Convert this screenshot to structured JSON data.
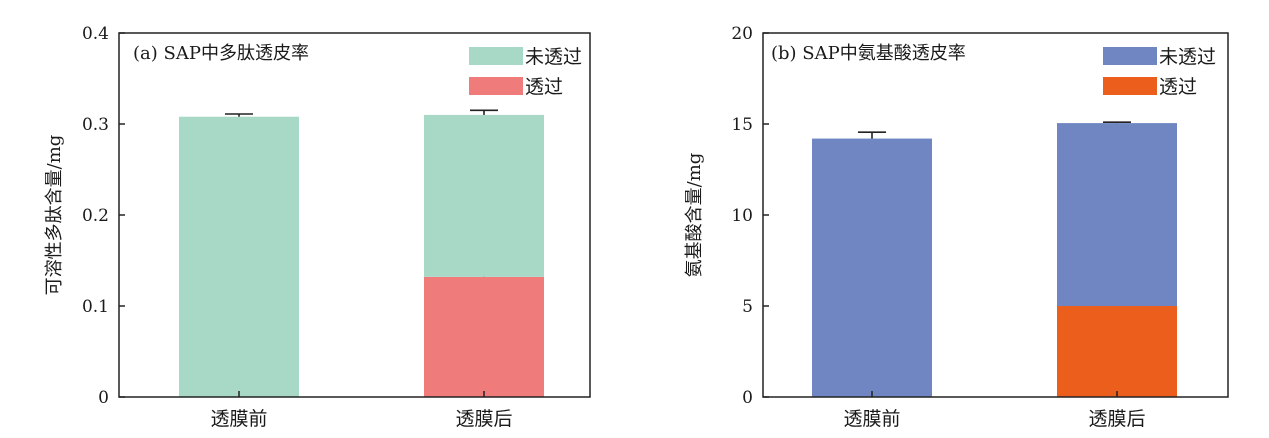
{
  "chart_data": [
    {
      "type": "bar",
      "stacked": true,
      "title": "(a) SAP中多肽透皮率",
      "xlabel": "",
      "ylabel": "可溶性多肽含量/mg",
      "categories": [
        "透膜前",
        "透膜后"
      ],
      "ylim": [
        0,
        0.4
      ],
      "yticks": [
        0,
        0.1,
        0.2,
        0.3,
        0.4
      ],
      "ytick_labels": [
        "0",
        "0.1",
        "0.2",
        "0.3",
        "0.4"
      ],
      "grid": false,
      "legend_position": "top-right",
      "legend": [
        "未透过",
        "透过"
      ],
      "series": [
        {
          "name": "透过",
          "values": [
            0,
            0.132
          ],
          "errors": [
            0,
            0.025
          ],
          "color": "#ef7b7b"
        },
        {
          "name": "未透过",
          "values": [
            0.308,
            0.178
          ],
          "errors": [
            0.003,
            0.005
          ],
          "color": "#a8d8c6"
        }
      ]
    },
    {
      "type": "bar",
      "stacked": true,
      "title": "(b) SAP中氨基酸透皮率",
      "xlabel": "",
      "ylabel": "氨基酸含量/mg",
      "categories": [
        "透膜前",
        "透膜后"
      ],
      "ylim": [
        0,
        20
      ],
      "yticks": [
        0,
        5,
        10,
        15,
        20
      ],
      "ytick_labels": [
        "0",
        "5",
        "10",
        "15",
        "20"
      ],
      "grid": false,
      "legend_position": "top-right",
      "legend": [
        "未透过",
        "透过"
      ],
      "series": [
        {
          "name": "透过",
          "values": [
            0,
            5.0
          ],
          "errors": [
            0,
            0.1
          ],
          "color": "#eb5e1c"
        },
        {
          "name": "未透过",
          "values": [
            14.2,
            10.05
          ],
          "errors": [
            0.35,
            0.05
          ],
          "color": "#6f86c2"
        }
      ]
    }
  ]
}
